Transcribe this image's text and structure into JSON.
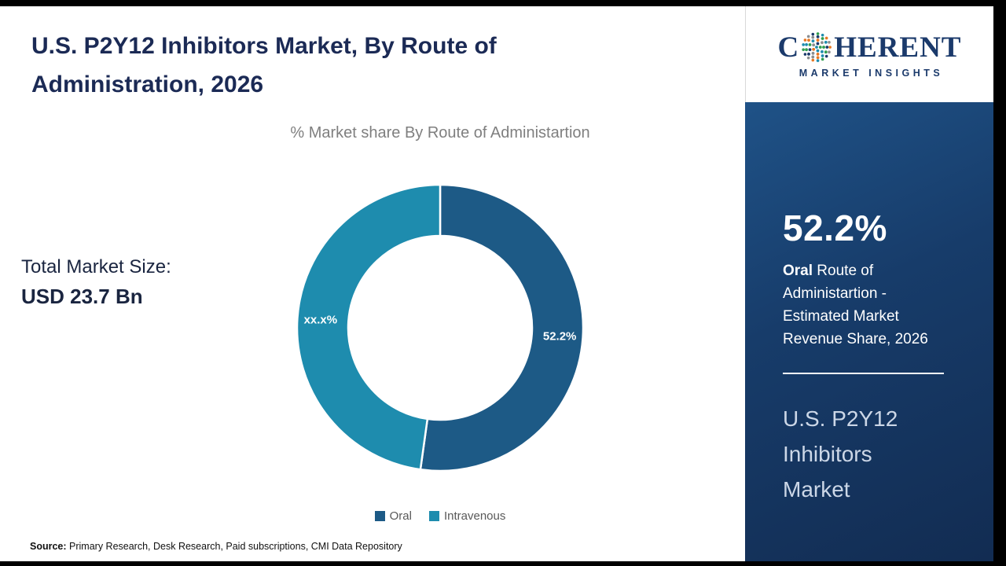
{
  "page": {
    "title": "U.S. P2Y12 Inhibitors Market, By Route of Administration, 2026",
    "source_label": "Source:",
    "source_text": " Primary Research, Desk Research, Paid subscriptions, CMI Data Repository"
  },
  "chart_data": {
    "type": "pie",
    "donut": true,
    "title": "% Market share By Route of Administartion",
    "categories": [
      "Oral",
      "Intravenous"
    ],
    "values": [
      52.2,
      47.8
    ],
    "labels": [
      "52.2%",
      "xx.x%"
    ],
    "colors": [
      "#1d5a86",
      "#1e8cae"
    ],
    "legend_position": "bottom"
  },
  "market": {
    "total_label": "Total Market Size:",
    "total_value": "USD 23.7 Bn"
  },
  "sidebar": {
    "stat_value": "52.2%",
    "stat_bold": "Oral",
    "stat_desc": " Route of Administartion - Estimated Market Revenue Share, 2026",
    "panel_title": "U.S. P2Y12 Inhibitors Market",
    "bg_color": "#16365f"
  },
  "logo": {
    "c": "C",
    "rest": "HERENT",
    "sub": "MARKET INSIGHTS",
    "dot_colors": [
      "#2f9e4f",
      "#1e8cae",
      "#e87722",
      "#8a8d8f",
      "#1b3a6b"
    ]
  }
}
